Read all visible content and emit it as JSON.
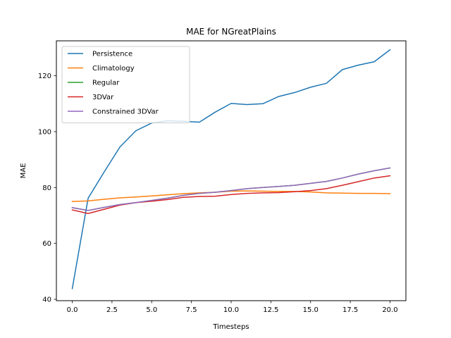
{
  "chart_data": {
    "type": "line",
    "title": "MAE for NGreatPlains",
    "xlabel": "Timesteps",
    "ylabel": "MAE",
    "xlim": [
      -1,
      21
    ],
    "ylim": [
      39.5,
      132.5
    ],
    "xticks": [
      0,
      2.5,
      5,
      7.5,
      10,
      12.5,
      15,
      17.5,
      20
    ],
    "xtick_labels": [
      "0.0",
      "2.5",
      "5.0",
      "7.5",
      "10.0",
      "12.5",
      "15.0",
      "17.5",
      "20.0"
    ],
    "yticks": [
      40,
      60,
      80,
      100,
      120
    ],
    "ytick_labels": [
      "40",
      "60",
      "80",
      "100",
      "120"
    ],
    "grid": false,
    "legend_position": "top-left",
    "x": [
      0,
      1,
      2,
      3,
      4,
      5,
      6,
      7,
      8,
      9,
      10,
      11,
      12,
      13,
      14,
      15,
      16,
      17,
      18,
      19,
      20
    ],
    "series": [
      {
        "name": "Persistence",
        "color": "#1f77b4",
        "values": [
          43.8,
          76.2,
          85.5,
          94.5,
          100.3,
          103.1,
          103.9,
          103.7,
          103.4,
          107.0,
          110.1,
          109.7,
          110.0,
          112.6,
          114.0,
          115.9,
          117.3,
          122.2,
          123.8,
          125.0,
          129.3
        ]
      },
      {
        "name": "Climatology",
        "color": "#ff7f0e",
        "values": [
          75.0,
          75.2,
          75.8,
          76.3,
          76.6,
          77.0,
          77.4,
          77.8,
          78.1,
          78.3,
          78.7,
          78.8,
          78.7,
          78.6,
          78.6,
          78.4,
          78.1,
          78.0,
          77.9,
          77.9,
          77.8
        ]
      },
      {
        "name": "Regular",
        "color": "#2ca02c",
        "values": [
          72.8,
          71.8,
          72.9,
          73.9,
          74.6,
          75.4,
          76.2,
          77.2,
          77.9,
          78.3,
          78.9,
          79.6,
          80.0,
          80.4,
          80.8,
          81.5,
          82.2,
          83.4,
          84.8,
          86.0,
          87.0
        ]
      },
      {
        "name": "3DVar",
        "color": "#d62728",
        "values": [
          72.0,
          70.7,
          72.2,
          73.7,
          74.6,
          75.1,
          75.7,
          76.5,
          76.8,
          76.9,
          77.5,
          77.9,
          78.1,
          78.2,
          78.5,
          78.9,
          79.6,
          80.8,
          82.1,
          83.4,
          84.2
        ]
      },
      {
        "name": "Constrained 3DVar",
        "color": "#9467bd",
        "values": [
          72.8,
          71.8,
          72.9,
          73.9,
          74.6,
          75.4,
          76.2,
          77.2,
          77.9,
          78.3,
          78.9,
          79.6,
          80.0,
          80.4,
          80.8,
          81.5,
          82.2,
          83.4,
          84.8,
          86.0,
          87.0
        ]
      }
    ]
  }
}
